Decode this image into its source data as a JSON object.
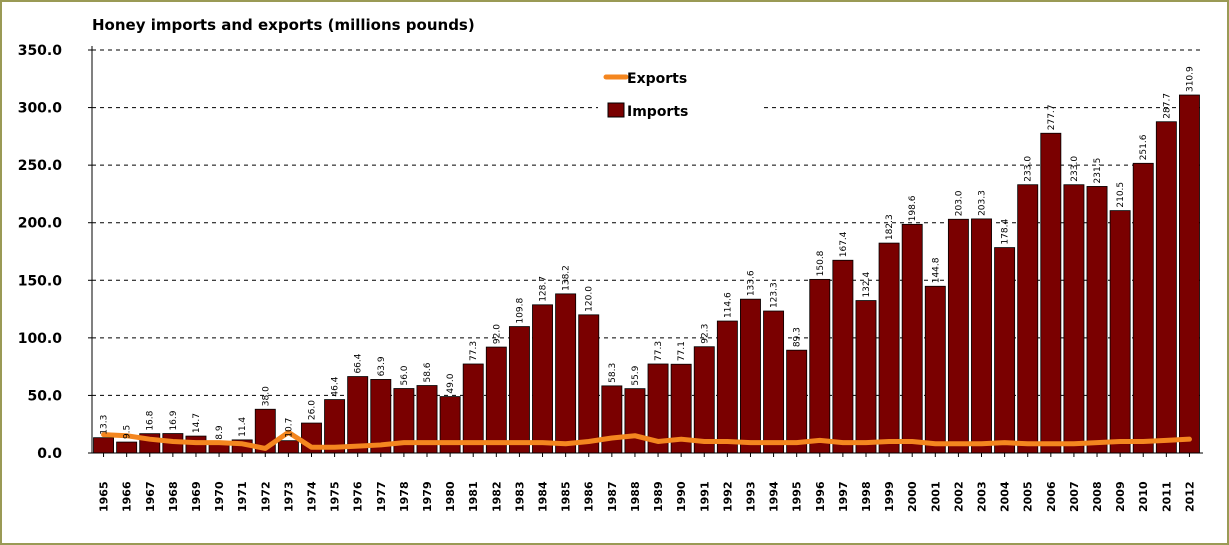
{
  "chart_data": {
    "type": "bar",
    "title": "Honey imports and exports (millions pounds)",
    "categories": [
      "1965",
      "1966",
      "1967",
      "1968",
      "1969",
      "1970",
      "1971",
      "1972",
      "1973",
      "1974",
      "1975",
      "1976",
      "1977",
      "1978",
      "1979",
      "1980",
      "1981",
      "1982",
      "1983",
      "1984",
      "1985",
      "1986",
      "1987",
      "1988",
      "1989",
      "1990",
      "1991",
      "1992",
      "1993",
      "1994",
      "1995",
      "1996",
      "1997",
      "1998",
      "1999",
      "2000",
      "2001",
      "2002",
      "2003",
      "2004",
      "2005",
      "2006",
      "2007",
      "2008",
      "2009",
      "2010",
      "2011",
      "2012"
    ],
    "ylim": [
      0,
      350
    ],
    "yticks": [
      "0.0",
      "50.0",
      "100.0",
      "150.0",
      "200.0",
      "250.0",
      "300.0",
      "350.0"
    ],
    "grid": true,
    "legend_position": "top-center",
    "series": [
      {
        "name": "Imports",
        "type": "bar",
        "color": "#7a0000",
        "values": [
          13.3,
          9.5,
          16.8,
          16.9,
          14.7,
          8.9,
          11.4,
          38.0,
          10.7,
          26.0,
          46.4,
          66.4,
          63.9,
          56.0,
          58.6,
          49.0,
          77.3,
          92.0,
          109.8,
          128.7,
          138.2,
          120.0,
          58.3,
          55.9,
          77.3,
          77.1,
          92.3,
          114.6,
          133.6,
          123.3,
          89.3,
          150.8,
          167.4,
          132.4,
          182.3,
          198.6,
          144.8,
          203.0,
          203.3,
          178.4,
          233.0,
          277.7,
          233.0,
          231.5,
          210.5,
          251.6,
          287.7,
          310.9
        ],
        "labels": [
          "13.3",
          "9.5",
          "16.8",
          "16.9",
          "14.7",
          "8.9",
          "11.4",
          "38.0",
          "10.7",
          "26.0",
          "46.4",
          "66.4",
          "63.9",
          "56.0",
          "58.6",
          "49.0",
          "77.3",
          "92.0",
          "109.8",
          "128.7",
          "138.2",
          "120.0",
          "58.3",
          "55.9",
          "77.3",
          "77.1",
          "92.3",
          "114.6",
          "133.6",
          "123.3",
          "89.3",
          "150.8",
          "167.4",
          "132.4",
          "182.3",
          "198.6",
          "144.8",
          "203.0",
          "203.3",
          "178.4",
          "233.0",
          "277.7",
          "233.0",
          "231.5",
          "210.5",
          "251.6",
          "287.7",
          "310.9"
        ]
      },
      {
        "name": "Exports",
        "type": "line",
        "color": "#f4861f",
        "values": [
          16,
          15,
          12,
          10,
          9,
          9,
          8,
          4,
          18,
          5,
          5,
          6,
          7,
          9,
          9,
          9,
          9,
          9,
          9,
          9,
          8,
          10,
          13,
          15,
          10,
          12,
          10,
          10,
          9,
          9,
          9,
          11,
          9,
          9,
          10,
          10,
          8,
          8,
          8,
          9,
          8,
          8,
          8,
          9,
          10,
          10,
          11,
          12
        ]
      }
    ]
  }
}
